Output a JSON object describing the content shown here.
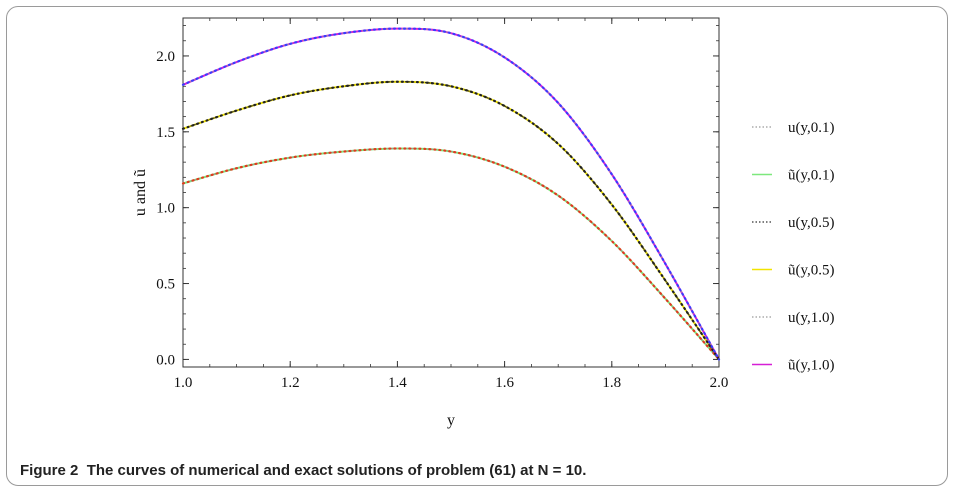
{
  "figure": {
    "caption_label": "Figure 2",
    "caption_text": "The curves of numerical and exact solutions of problem (61) at N = 10."
  },
  "chart_data": {
    "type": "line",
    "title": "",
    "xlabel": "y",
    "ylabel": "u and ũ",
    "xlim": [
      1.0,
      2.0
    ],
    "ylim": [
      -0.05,
      2.25
    ],
    "x_ticks": [
      "1.0",
      "1.2",
      "1.4",
      "1.6",
      "1.8",
      "2.0"
    ],
    "y_ticks": [
      "0.0",
      "0.5",
      "1.0",
      "1.5",
      "2.0"
    ],
    "legend_position": "right",
    "x": [
      1.0,
      1.1,
      1.2,
      1.3,
      1.4,
      1.5,
      1.6,
      1.7,
      1.8,
      1.9,
      2.0
    ],
    "series": [
      {
        "name": "u(y,0.1)",
        "style": "dotted",
        "color": "#9a9a9a",
        "values": [
          1.16,
          1.26,
          1.33,
          1.37,
          1.39,
          1.37,
          1.27,
          1.08,
          0.78,
          0.4,
          0.0
        ]
      },
      {
        "name": "ũ(y,0.1)",
        "style": "solid",
        "color": "#7de87d",
        "values": [
          1.16,
          1.26,
          1.33,
          1.37,
          1.39,
          1.37,
          1.27,
          1.08,
          0.78,
          0.4,
          0.0
        ]
      },
      {
        "name": "u(y,0.5)",
        "style": "dotted",
        "color": "#333333",
        "values": [
          1.52,
          1.64,
          1.74,
          1.8,
          1.83,
          1.8,
          1.67,
          1.42,
          1.02,
          0.52,
          0.0
        ]
      },
      {
        "name": "ũ(y,0.5)",
        "style": "solid",
        "color": "#f2e400",
        "values": [
          1.52,
          1.64,
          1.74,
          1.8,
          1.83,
          1.8,
          1.67,
          1.42,
          1.02,
          0.52,
          0.0
        ]
      },
      {
        "name": "u(y,1.0)",
        "style": "dotted",
        "color": "#9a9a9a",
        "values": [
          1.81,
          1.96,
          2.08,
          2.15,
          2.18,
          2.15,
          1.99,
          1.69,
          1.22,
          0.63,
          0.0
        ]
      },
      {
        "name": "ũ(y,1.0)",
        "style": "solid",
        "color": "#d61fd6",
        "values": [
          1.81,
          1.96,
          2.08,
          2.15,
          2.18,
          2.15,
          1.99,
          1.69,
          1.22,
          0.63,
          0.0
        ]
      }
    ],
    "overlay_dots": [
      {
        "series_index": 0,
        "color": "#e03b1f"
      },
      {
        "series_index": 2,
        "color": "#222222"
      },
      {
        "series_index": 4,
        "color": "#3a3aff"
      }
    ]
  }
}
